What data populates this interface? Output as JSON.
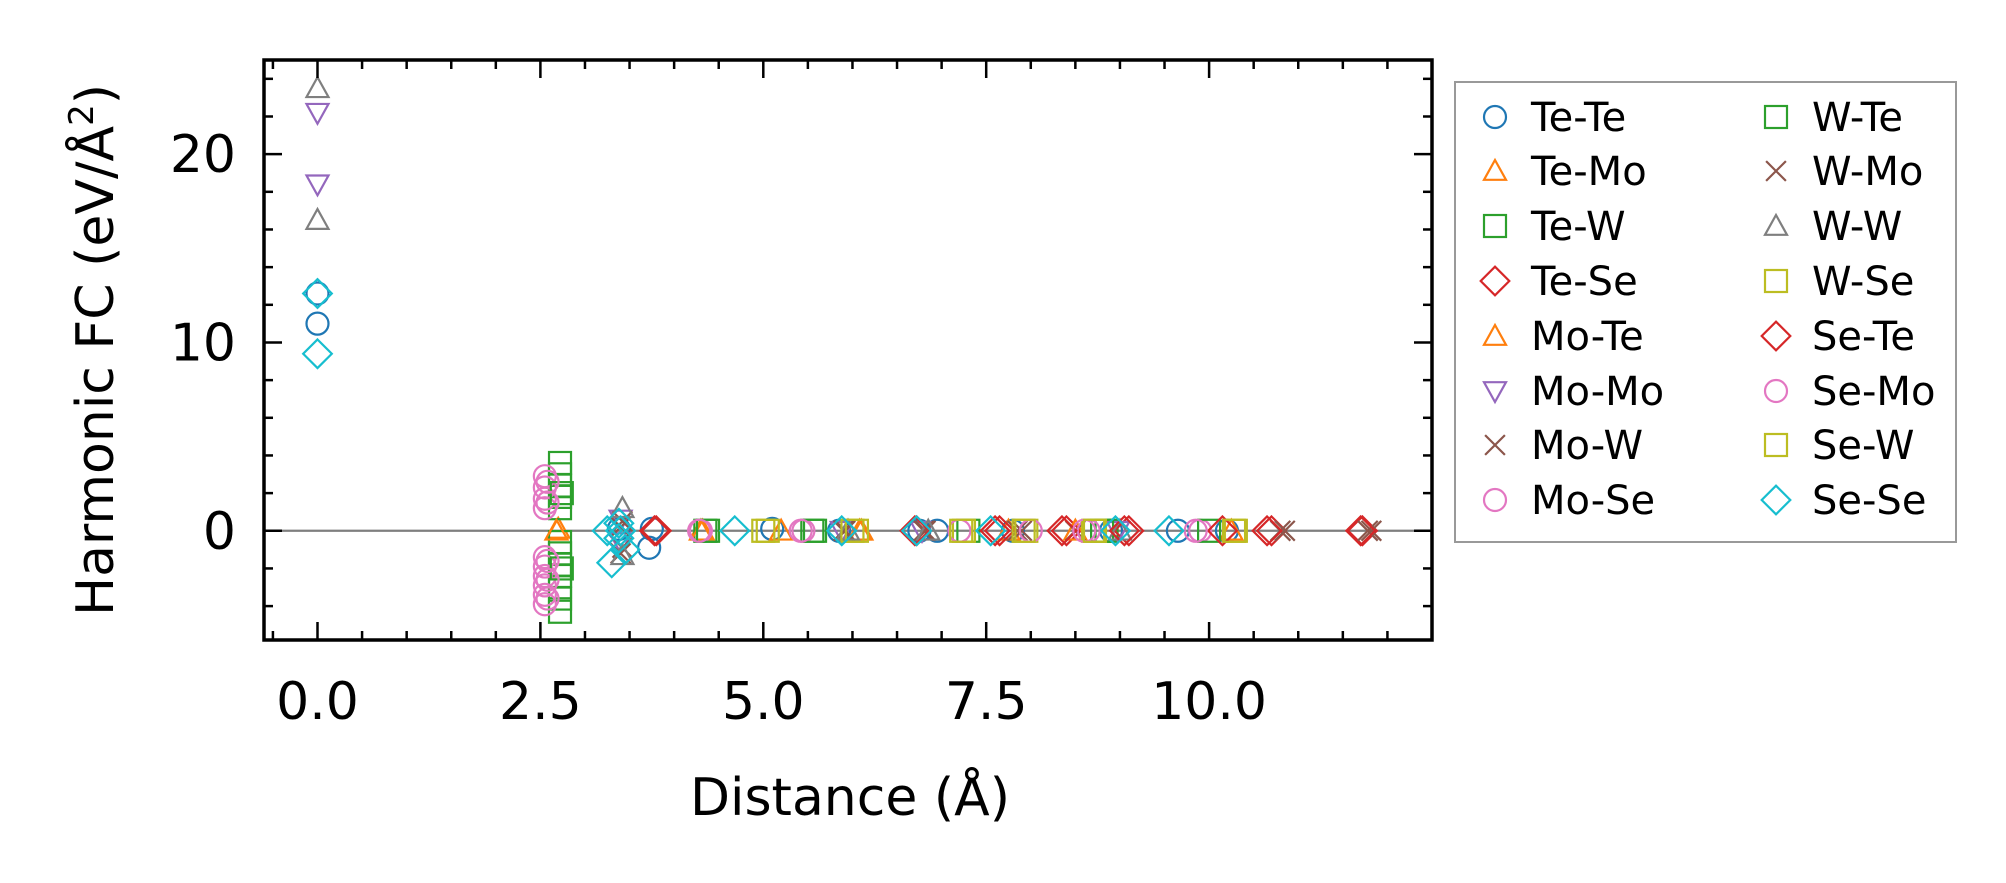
{
  "chart_data": {
    "type": "scatter",
    "title": "",
    "xlabel": "Distance (Å)",
    "ylabel": "Harmonic FC (eV/Å²)",
    "ylabel_parts": {
      "main": "Harmonic FC (eV/Å",
      "sup": "2",
      "close": ")"
    },
    "xlim": [
      -0.6,
      12.5
    ],
    "ylim": [
      -5.8,
      25
    ],
    "xticks": [
      0.0,
      2.5,
      5.0,
      7.5,
      10.0
    ],
    "xtick_labels": [
      "0.0",
      "2.5",
      "5.0",
      "7.5",
      "10.0"
    ],
    "yticks": [
      0,
      10,
      20
    ],
    "ytick_labels": [
      "0",
      "10",
      "20"
    ],
    "zero_line": true,
    "grid": false,
    "legend": {
      "placement": "outside-right",
      "columns": [
        [
          "Te-Te",
          "Te-Mo",
          "Te-W",
          "Te-Se",
          "Mo-Te",
          "Mo-Mo",
          "Mo-W",
          "Mo-Se"
        ],
        [
          "W-Te",
          "W-Mo",
          "W-W",
          "W-Se",
          "Se-Te",
          "Se-Mo",
          "Se-W",
          "Se-Se"
        ]
      ]
    },
    "series": [
      {
        "name": "Te-Te",
        "marker": "circle",
        "color": "#1f77b4",
        "points": [
          [
            0,
            11.0
          ],
          [
            0,
            12.6
          ],
          [
            3.38,
            0.1
          ],
          [
            3.72,
            -0.9
          ],
          [
            3.75,
            0.1
          ],
          [
            5.1,
            0.1
          ],
          [
            5.85,
            0.0
          ],
          [
            6.75,
            0.0
          ],
          [
            6.95,
            0.0
          ],
          [
            7.8,
            0.0
          ],
          [
            8.9,
            0.0
          ],
          [
            9.65,
            0.0
          ],
          [
            10.2,
            0.0
          ]
        ]
      },
      {
        "name": "Te-Mo",
        "marker": "triangle-up",
        "color": "#ff7f0e",
        "points": [
          [
            2.7,
            0.1
          ],
          [
            4.3,
            0.0
          ],
          [
            5.2,
            0.0
          ],
          [
            6.1,
            0.0
          ],
          [
            7.75,
            0.0
          ],
          [
            10.25,
            0.0
          ]
        ]
      },
      {
        "name": "Te-W",
        "marker": "square",
        "color": "#2ca02c",
        "points": [
          [
            2.72,
            3.6
          ],
          [
            2.72,
            3.0
          ],
          [
            2.72,
            2.4
          ],
          [
            2.72,
            1.8
          ],
          [
            2.72,
            1.2
          ],
          [
            2.72,
            -0.6
          ],
          [
            2.72,
            -1.2
          ],
          [
            2.72,
            -1.8
          ],
          [
            2.72,
            -2.4
          ],
          [
            2.72,
            -3.0
          ],
          [
            2.72,
            -3.6
          ],
          [
            2.72,
            -4.3
          ],
          [
            4.35,
            0.0
          ],
          [
            5.55,
            0.0
          ],
          [
            8.85,
            0.0
          ]
        ]
      },
      {
        "name": "Te-Se",
        "marker": "diamond",
        "color": "#d62728",
        "points": [
          [
            3.78,
            0.0
          ],
          [
            6.72,
            0.0
          ],
          [
            7.65,
            0.0
          ],
          [
            8.4,
            0.0
          ],
          [
            9.1,
            0.0
          ],
          [
            10.7,
            0.0
          ],
          [
            11.72,
            0.0
          ]
        ]
      },
      {
        "name": "Mo-Te",
        "marker": "triangle-up",
        "color": "#ff7f0e",
        "points": [
          [
            2.68,
            0.0
          ],
          [
            4.32,
            0.0
          ],
          [
            6.08,
            0.0
          ],
          [
            8.5,
            0.0
          ]
        ]
      },
      {
        "name": "Mo-Mo",
        "marker": "triangle-down",
        "color": "#9467bd",
        "points": [
          [
            0,
            22.2
          ],
          [
            0,
            18.4
          ],
          [
            3.4,
            0.6
          ],
          [
            3.4,
            -0.6
          ],
          [
            5.88,
            0.0
          ],
          [
            6.78,
            0.0
          ],
          [
            8.98,
            0.0
          ]
        ]
      },
      {
        "name": "Mo-W",
        "marker": "x",
        "color": "#8c564b",
        "points": [
          [
            3.4,
            0.2
          ],
          [
            3.4,
            -1.2
          ],
          [
            5.9,
            0.0
          ],
          [
            6.8,
            0.0
          ],
          [
            7.85,
            0.0
          ],
          [
            8.5,
            0.0
          ],
          [
            10.8,
            0.0
          ],
          [
            11.78,
            0.0
          ]
        ]
      },
      {
        "name": "Mo-Se",
        "marker": "circle",
        "color": "#e377c2",
        "points": [
          [
            2.55,
            2.9
          ],
          [
            2.55,
            2.3
          ],
          [
            2.55,
            1.7
          ],
          [
            2.55,
            1.2
          ],
          [
            2.55,
            -1.4
          ],
          [
            2.55,
            -1.9
          ],
          [
            2.55,
            -2.4
          ],
          [
            2.55,
            -2.9
          ],
          [
            2.55,
            -3.4
          ],
          [
            2.55,
            -3.9
          ],
          [
            4.3,
            0.0
          ],
          [
            5.45,
            0.0
          ],
          [
            8.65,
            0.0
          ],
          [
            9.9,
            0.0
          ]
        ]
      },
      {
        "name": "W-Te",
        "marker": "square",
        "color": "#2ca02c",
        "points": [
          [
            2.74,
            2.0
          ],
          [
            2.74,
            -2.0
          ],
          [
            4.38,
            0.0
          ],
          [
            5.58,
            0.0
          ],
          [
            7.3,
            0.0
          ],
          [
            8.8,
            0.0
          ],
          [
            10.0,
            0.0
          ]
        ]
      },
      {
        "name": "W-Mo",
        "marker": "x",
        "color": "#8c564b",
        "points": [
          [
            3.42,
            0.5
          ],
          [
            3.42,
            -0.9
          ],
          [
            5.92,
            0.0
          ],
          [
            6.82,
            0.0
          ],
          [
            7.9,
            0.0
          ],
          [
            10.85,
            0.0
          ],
          [
            11.82,
            0.0
          ]
        ]
      },
      {
        "name": "W-W",
        "marker": "triangle-up",
        "color": "#7f7f7f",
        "points": [
          [
            0,
            23.5
          ],
          [
            0,
            16.5
          ],
          [
            3.42,
            1.2
          ],
          [
            3.42,
            -1.3
          ],
          [
            5.95,
            0.0
          ],
          [
            6.85,
            0.0
          ],
          [
            9.0,
            0.0
          ]
        ]
      },
      {
        "name": "W-Se",
        "marker": "square",
        "color": "#bcbd22",
        "points": [
          [
            5.05,
            0.0
          ],
          [
            6.05,
            0.0
          ],
          [
            7.25,
            0.0
          ],
          [
            7.95,
            0.0
          ],
          [
            8.7,
            0.0
          ],
          [
            10.3,
            0.0
          ]
        ]
      },
      {
        "name": "Se-Te",
        "marker": "diamond",
        "color": "#d62728",
        "points": [
          [
            3.8,
            0.0
          ],
          [
            6.7,
            0.0
          ],
          [
            7.6,
            0.0
          ],
          [
            8.35,
            0.0
          ],
          [
            9.05,
            0.0
          ],
          [
            10.15,
            0.0
          ],
          [
            10.65,
            0.0
          ],
          [
            11.7,
            0.0
          ]
        ]
      },
      {
        "name": "Se-Mo",
        "marker": "circle",
        "color": "#e377c2",
        "points": [
          [
            2.58,
            2.6
          ],
          [
            2.58,
            1.5
          ],
          [
            2.58,
            -1.6
          ],
          [
            2.58,
            -2.6
          ],
          [
            2.58,
            -3.6
          ],
          [
            4.28,
            0.0
          ],
          [
            5.42,
            0.0
          ],
          [
            7.2,
            0.0
          ],
          [
            8.0,
            0.0
          ],
          [
            8.6,
            0.0
          ],
          [
            9.85,
            0.0
          ]
        ]
      },
      {
        "name": "Se-W",
        "marker": "square",
        "color": "#bcbd22",
        "points": [
          [
            5.0,
            0.0
          ],
          [
            6.0,
            0.0
          ],
          [
            7.22,
            0.0
          ],
          [
            7.92,
            0.0
          ],
          [
            8.72,
            0.0
          ],
          [
            10.28,
            0.0
          ]
        ]
      },
      {
        "name": "Se-Se",
        "marker": "diamond",
        "color": "#17becf",
        "points": [
          [
            0,
            12.6
          ],
          [
            0,
            9.4
          ],
          [
            3.25,
            0.0
          ],
          [
            3.3,
            -1.7
          ],
          [
            3.38,
            0.4
          ],
          [
            3.38,
            -0.4
          ],
          [
            3.4,
            0.0
          ],
          [
            3.45,
            -1.0
          ],
          [
            4.68,
            0.0
          ],
          [
            5.88,
            0.0
          ],
          [
            6.72,
            0.0
          ],
          [
            7.55,
            0.0
          ],
          [
            8.95,
            0.0
          ],
          [
            9.55,
            0.0
          ]
        ]
      }
    ]
  }
}
